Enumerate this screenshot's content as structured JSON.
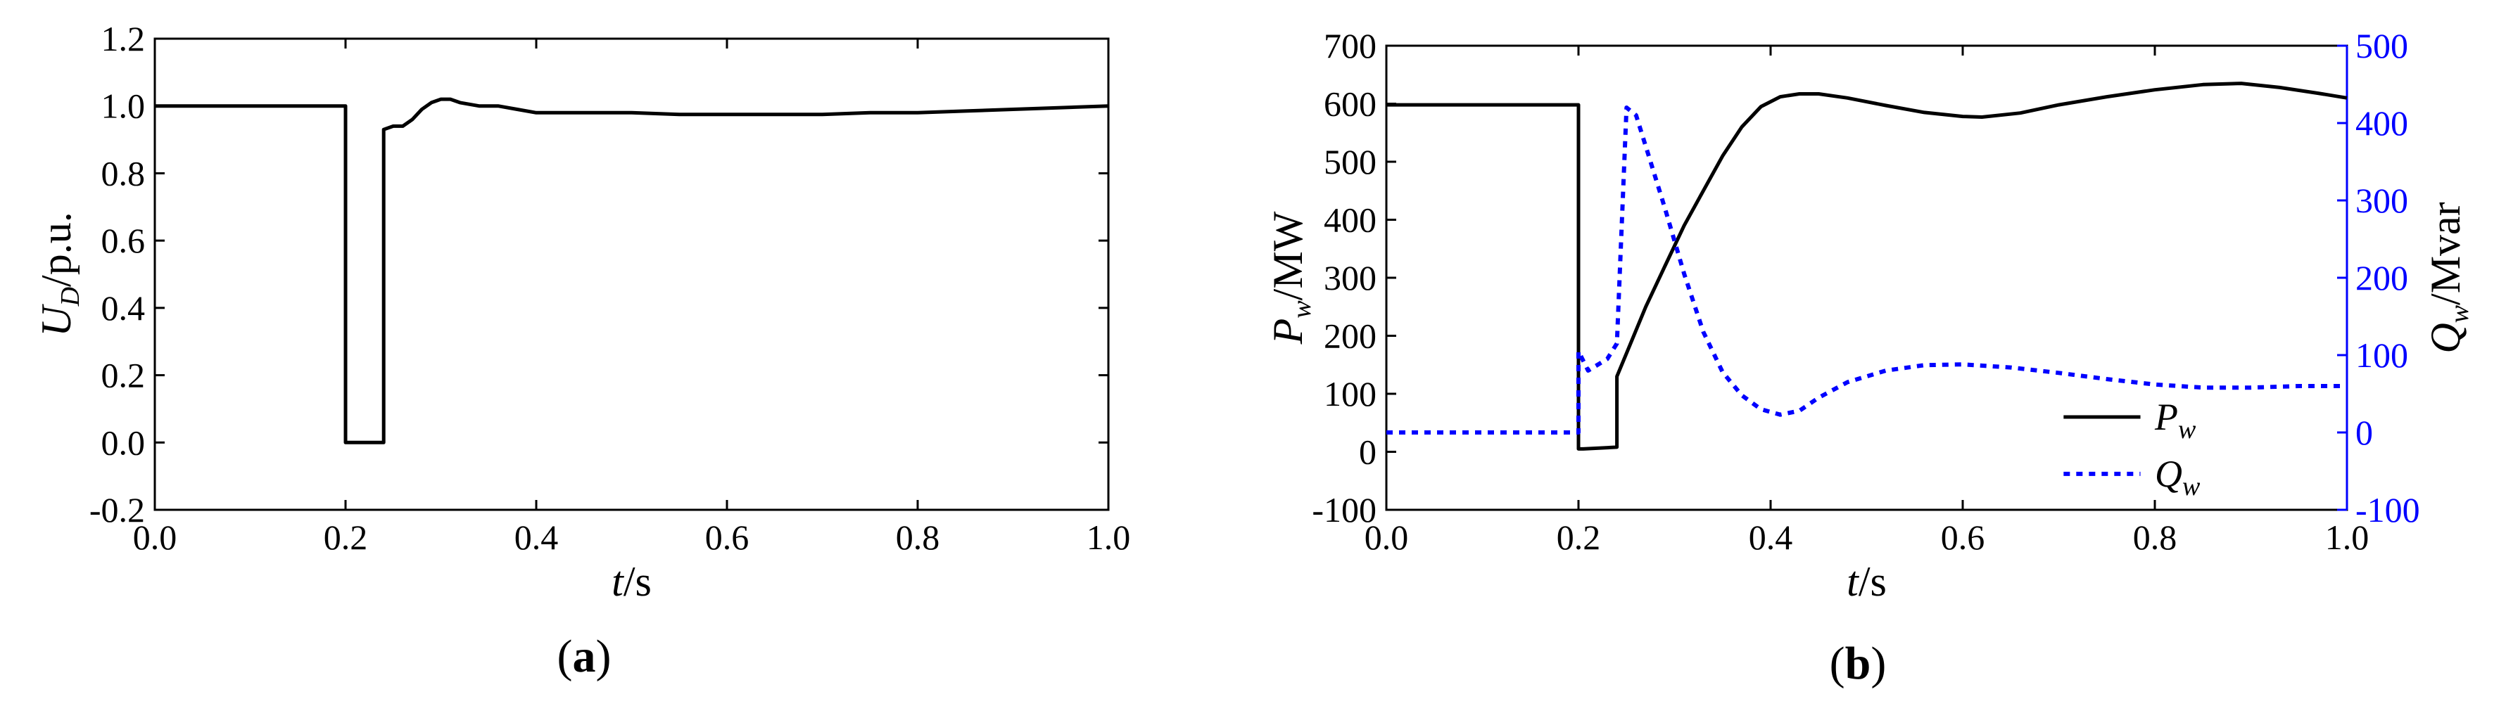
{
  "chart_data": [
    {
      "panel": "(a)",
      "type": "line",
      "xlabel": "t/s",
      "ylabel": "U_D/p.u.",
      "xlim": [
        0.0,
        1.0
      ],
      "ylim": [
        -0.2,
        1.2
      ],
      "xticks": [
        "0.0",
        "0.2",
        "0.4",
        "0.6",
        "0.8",
        "1.0"
      ],
      "yticks": [
        "-0.2",
        "0.0",
        "0.2",
        "0.4",
        "0.6",
        "0.8",
        "1.0",
        "1.2"
      ],
      "grid": false,
      "series": [
        {
          "color": "#000000",
          "style": "solid",
          "x": [
            0.0,
            0.2,
            0.2,
            0.24,
            0.24,
            0.25,
            0.26,
            0.27,
            0.28,
            0.29,
            0.3,
            0.31,
            0.32,
            0.34,
            0.36,
            0.38,
            0.4,
            0.45,
            0.5,
            0.55,
            0.6,
            0.65,
            0.7,
            0.75,
            0.8,
            0.85,
            0.9,
            0.95,
            1.0
          ],
          "y": [
            1.0,
            1.0,
            0.0,
            0.0,
            0.93,
            0.94,
            0.94,
            0.96,
            0.99,
            1.01,
            1.02,
            1.02,
            1.01,
            1.0,
            1.0,
            0.99,
            0.98,
            0.98,
            0.98,
            0.975,
            0.975,
            0.975,
            0.975,
            0.98,
            0.98,
            0.985,
            0.99,
            0.995,
            1.0
          ]
        }
      ]
    },
    {
      "panel": "(b)",
      "type": "line",
      "xlabel": "t/s",
      "ylabel": "P_w/MW",
      "y2label": "Q_w/Mvar",
      "xlim": [
        0.0,
        1.0
      ],
      "ylim": [
        -100,
        700
      ],
      "y2lim": [
        -100,
        500
      ],
      "xticks": [
        "0.0",
        "0.2",
        "0.4",
        "0.6",
        "0.8",
        "1.0"
      ],
      "yticks": [
        "-100",
        "0",
        "100",
        "200",
        "300",
        "400",
        "500",
        "600",
        "700"
      ],
      "y2ticks": [
        "-100",
        "0",
        "100",
        "200",
        "300",
        "400",
        "500"
      ],
      "grid": false,
      "legend_position": "bottom-right",
      "series": [
        {
          "name": "P_w",
          "axis": "left",
          "color": "#000000",
          "style": "solid",
          "x": [
            0.0,
            0.2,
            0.2,
            0.205,
            0.24,
            0.24,
            0.25,
            0.27,
            0.29,
            0.31,
            0.33,
            0.35,
            0.37,
            0.39,
            0.41,
            0.43,
            0.45,
            0.48,
            0.52,
            0.56,
            0.6,
            0.62,
            0.66,
            0.7,
            0.75,
            0.8,
            0.85,
            0.89,
            0.93,
            0.97,
            1.0
          ],
          "y": [
            598,
            598,
            5,
            5,
            8,
            130,
            170,
            250,
            320,
            390,
            450,
            510,
            560,
            595,
            612,
            617,
            617,
            610,
            597,
            585,
            578,
            577,
            584,
            598,
            612,
            624,
            633,
            635,
            628,
            618,
            610
          ]
        },
        {
          "name": "Q_w",
          "axis": "right",
          "color": "#0000ff",
          "style": "dotted",
          "x": [
            0.0,
            0.199,
            0.2,
            0.2,
            0.21,
            0.23,
            0.24,
            0.25,
            0.26,
            0.27,
            0.29,
            0.31,
            0.33,
            0.35,
            0.37,
            0.39,
            0.41,
            0.43,
            0.45,
            0.48,
            0.52,
            0.56,
            0.6,
            0.65,
            0.7,
            0.75,
            0.8,
            0.85,
            0.9,
            0.95,
            1.0
          ],
          "y": [
            0,
            0,
            0,
            105,
            80,
            95,
            115,
            420,
            410,
            370,
            290,
            205,
            130,
            78,
            48,
            30,
            23,
            28,
            45,
            65,
            80,
            87,
            88,
            84,
            77,
            69,
            62,
            58,
            58,
            60,
            60
          ]
        }
      ]
    }
  ]
}
